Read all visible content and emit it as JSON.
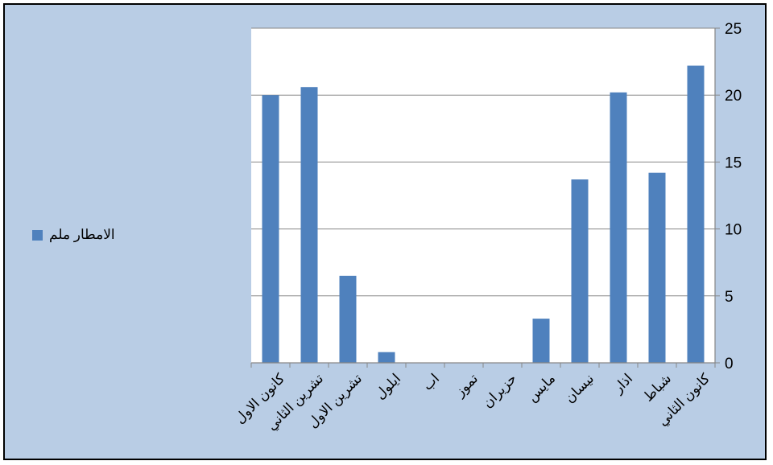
{
  "chart_data": {
    "type": "bar",
    "categories": [
      "كانون الاول",
      "تشرين الثاني",
      "تشرين الاول",
      "ايلول",
      "اب",
      "تموز",
      "حزيران",
      "مايس",
      "نيسان",
      "اذار",
      "شباط",
      "كانون الثاني"
    ],
    "series": [
      {
        "name": "الامطار ملم",
        "values": [
          20,
          20.6,
          6.5,
          0.8,
          0,
          0,
          0,
          3.3,
          13.7,
          20.2,
          14.2,
          22.2
        ],
        "color": "#4f81bd"
      }
    ],
    "ylim": [
      0,
      25
    ],
    "yticks": [
      "0",
      "5",
      "10",
      "15",
      "20",
      "25"
    ],
    "y_axis_side": "right",
    "grid": true,
    "legend_position": "left",
    "background_color": "#b9cde5",
    "plot_background_color": "#ffffff"
  }
}
